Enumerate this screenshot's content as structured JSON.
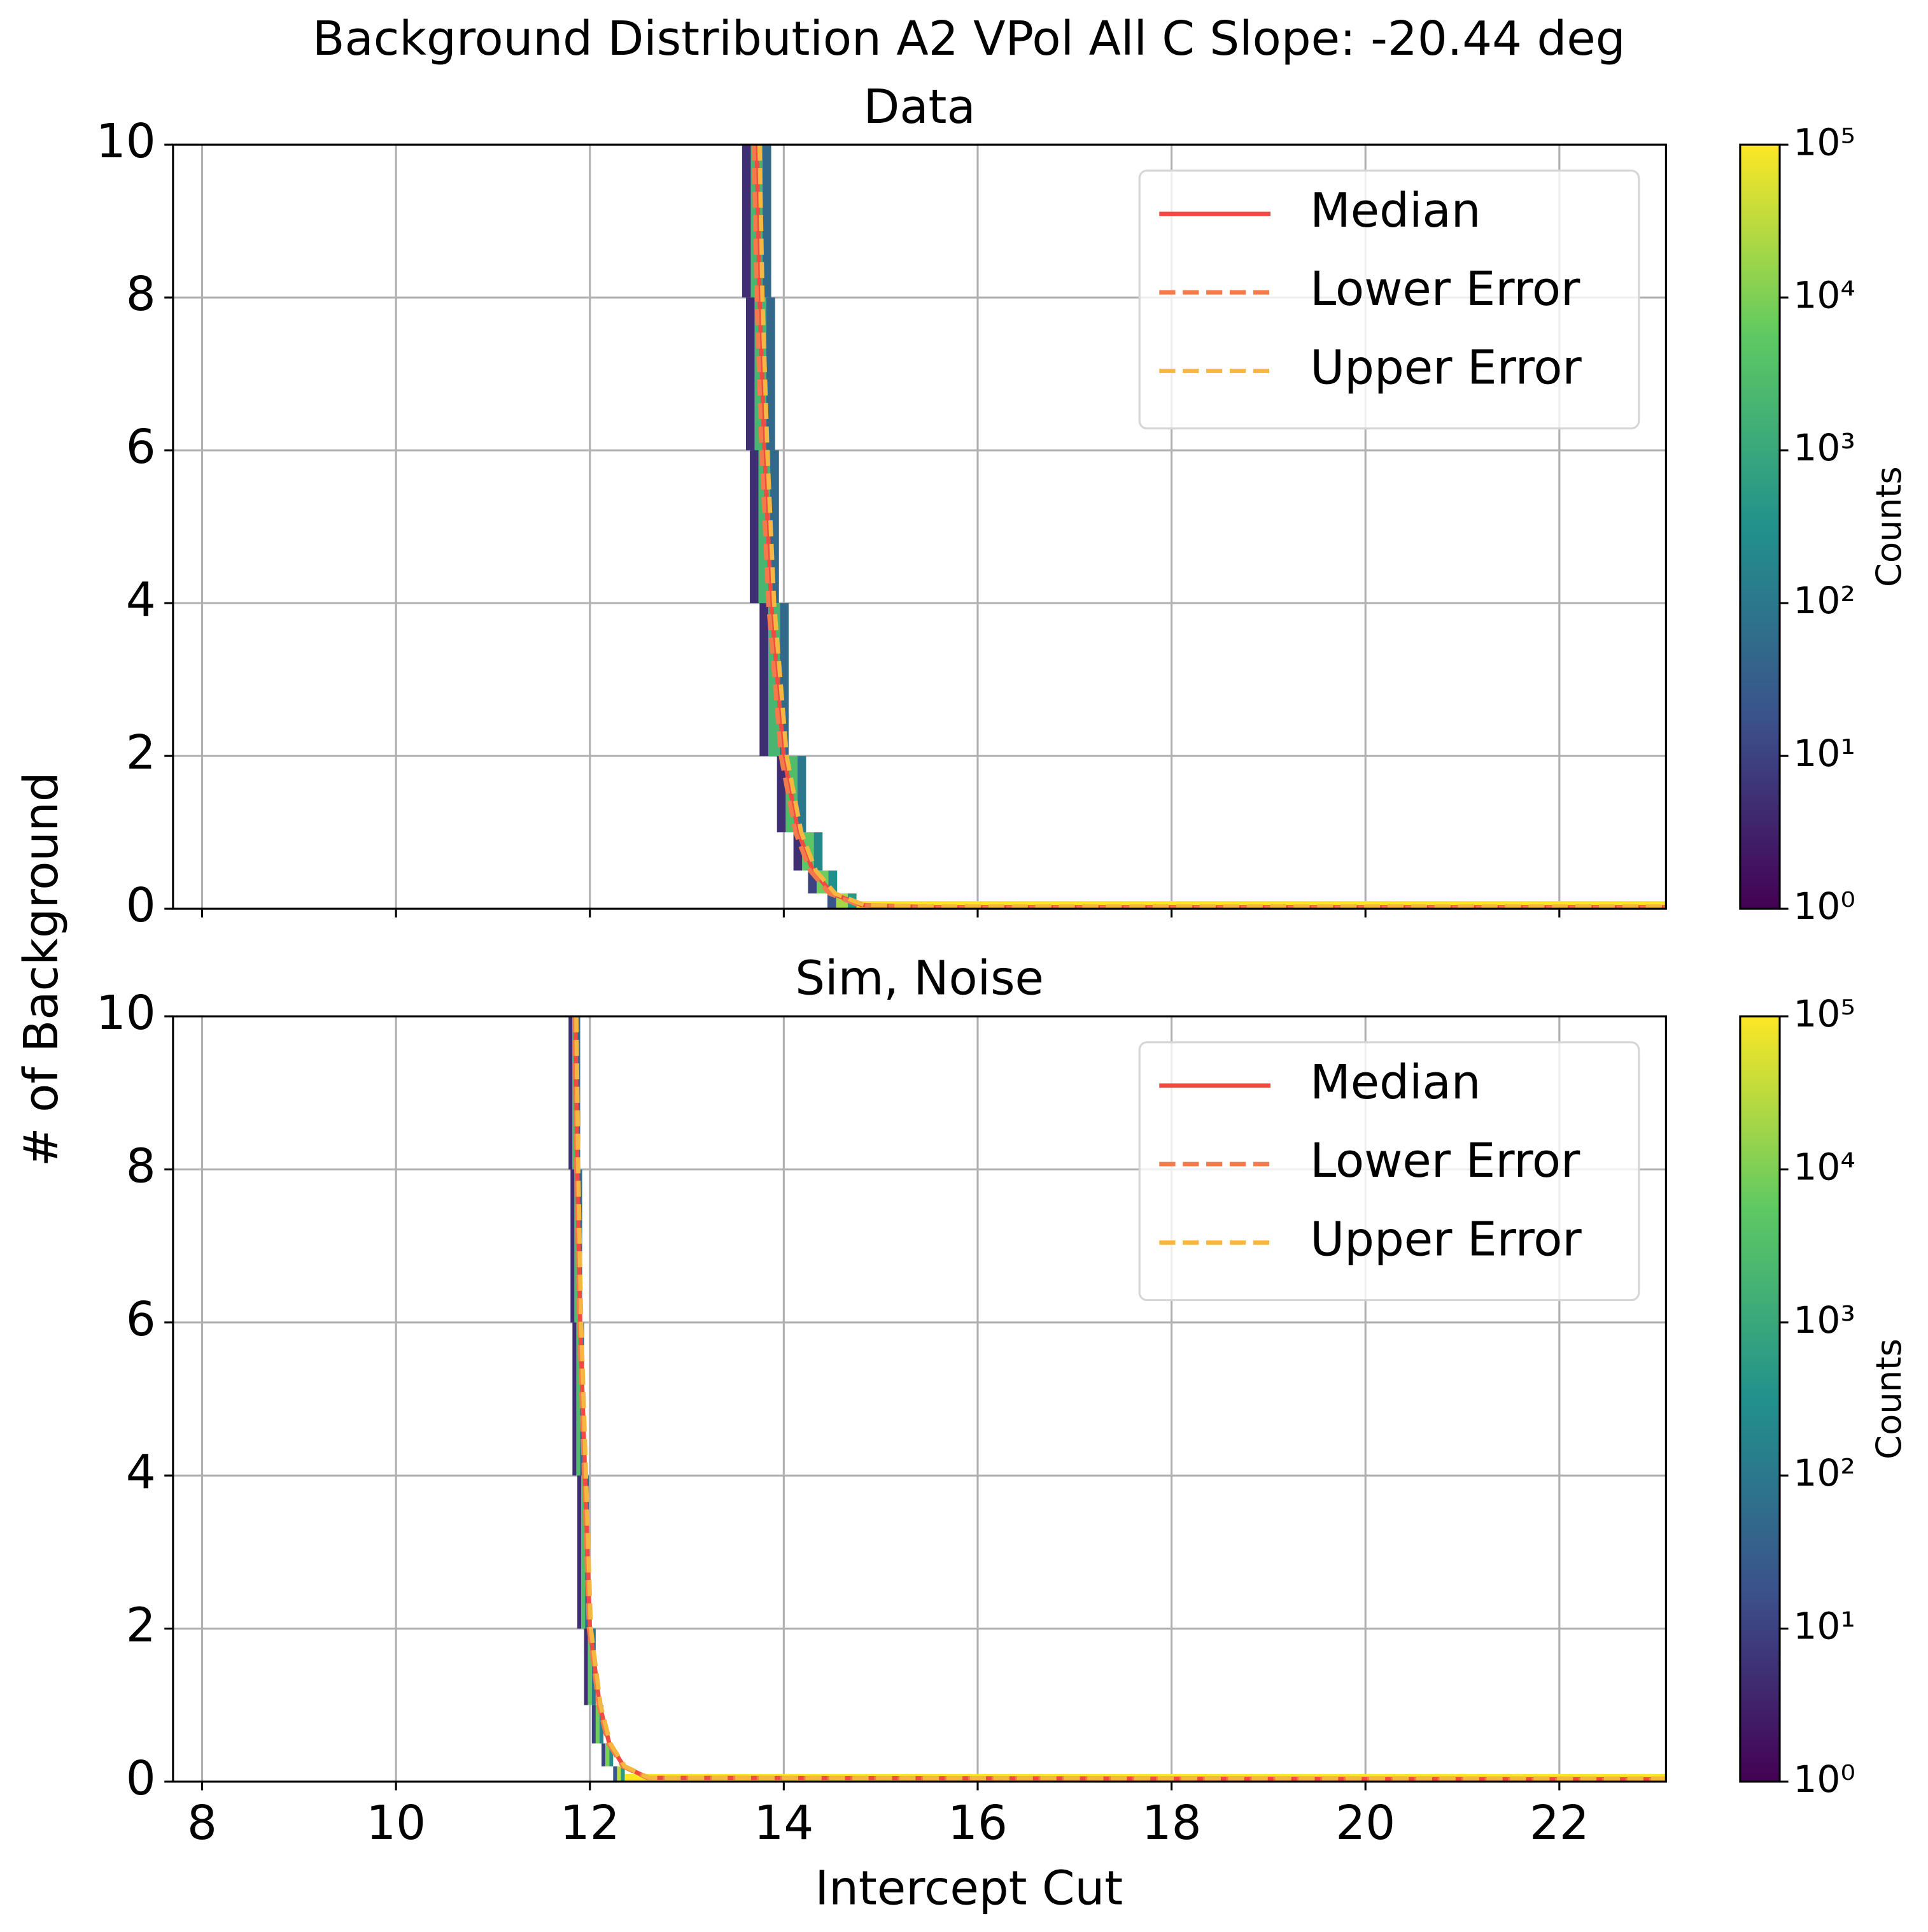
{
  "title": "Background Distribution A2 VPol All C Slope: -20.44 deg",
  "xlabel": "Intercept Cut",
  "ylabel": "# of Background",
  "chart_data": [
    {
      "type": "heatmap",
      "subtitle": "Data",
      "xlim": [
        7.7,
        23.1
      ],
      "xticks": [
        8,
        10,
        12,
        14,
        16,
        18,
        20,
        22
      ],
      "ylim": [
        0,
        10
      ],
      "yticks": [
        0,
        2,
        4,
        6,
        8,
        10
      ],
      "grid": true,
      "legend": "upper right",
      "cells": [
        [
          13.57,
          13.66,
          8,
          10,
          5
        ],
        [
          13.66,
          13.78,
          8,
          10,
          2000
        ],
        [
          13.78,
          13.87,
          8,
          10,
          50
        ],
        [
          13.61,
          13.7,
          6,
          8,
          5
        ],
        [
          13.7,
          13.82,
          6,
          8,
          2000
        ],
        [
          13.82,
          13.91,
          6,
          8,
          50
        ],
        [
          13.65,
          13.74,
          4,
          6,
          5
        ],
        [
          13.74,
          13.86,
          4,
          6,
          2000
        ],
        [
          13.86,
          13.95,
          4,
          6,
          50
        ],
        [
          13.75,
          13.84,
          2,
          4,
          5
        ],
        [
          13.84,
          13.96,
          2,
          4,
          2000
        ],
        [
          13.96,
          14.05,
          2,
          4,
          50
        ],
        [
          13.93,
          14.02,
          1,
          2,
          5
        ],
        [
          14.02,
          14.14,
          1,
          2,
          3000
        ],
        [
          14.14,
          14.23,
          1,
          2,
          100
        ],
        [
          14.1,
          14.19,
          0.5,
          1,
          5
        ],
        [
          14.19,
          14.31,
          0.5,
          1,
          5000
        ],
        [
          14.31,
          14.4,
          0.5,
          1,
          200
        ],
        [
          14.25,
          14.34,
          0.2,
          0.5,
          10
        ],
        [
          14.34,
          14.46,
          0.2,
          0.5,
          8000
        ],
        [
          14.46,
          14.55,
          0.2,
          0.5,
          300
        ],
        [
          14.45,
          14.54,
          0,
          0.2,
          20
        ],
        [
          14.54,
          14.66,
          0,
          0.2,
          20000
        ],
        [
          14.66,
          14.75,
          0,
          0.2,
          500
        ],
        [
          14.75,
          23.1,
          0,
          0.1,
          100000
        ]
      ],
      "series": [
        {
          "name": "Median",
          "color": "#f04a41",
          "dash": false,
          "x": [
            13.72,
            13.75,
            13.8,
            13.87,
            14.0,
            14.15,
            14.3,
            14.5,
            14.8,
            15.5,
            23.1
          ],
          "values": [
            10,
            8,
            6,
            4,
            2,
            1,
            0.5,
            0.2,
            0.05,
            0.02,
            0.02
          ]
        },
        {
          "name": "Lower Error",
          "color": "#f37a4a",
          "dash": true,
          "x": [
            13.69,
            13.72,
            13.77,
            13.84,
            13.97,
            14.12,
            14.27,
            14.47,
            14.77,
            15.5,
            23.1
          ],
          "values": [
            10,
            8,
            6,
            4,
            2,
            1,
            0.5,
            0.2,
            0.05,
            0.01,
            0.01
          ]
        },
        {
          "name": "Upper Error",
          "color": "#f6b741",
          "dash": true,
          "x": [
            13.75,
            13.78,
            13.83,
            13.9,
            14.03,
            14.18,
            14.33,
            14.53,
            14.83,
            15.5,
            23.1
          ],
          "values": [
            10,
            8,
            6,
            4,
            2,
            1,
            0.5,
            0.2,
            0.05,
            0.03,
            0.03
          ]
        }
      ],
      "colorbar": {
        "label": "Counts",
        "log": true,
        "lim": [
          1,
          100000
        ],
        "ticks": [
          {
            "value": 1,
            "label": "10⁰"
          },
          {
            "value": 10,
            "label": "10¹"
          },
          {
            "value": 100,
            "label": "10²"
          },
          {
            "value": 1000,
            "label": "10³"
          },
          {
            "value": 10000,
            "label": "10⁴"
          },
          {
            "value": 100000,
            "label": "10⁵"
          }
        ]
      }
    },
    {
      "type": "heatmap",
      "subtitle": "Sim, Noise",
      "xlim": [
        7.7,
        23.1
      ],
      "xticks": [
        8,
        10,
        12,
        14,
        16,
        18,
        20,
        22
      ],
      "ylim": [
        0,
        10
      ],
      "yticks": [
        0,
        2,
        4,
        6,
        8,
        10
      ],
      "grid": true,
      "legend": "upper right",
      "cells": [
        [
          11.78,
          11.82,
          8,
          10,
          5
        ],
        [
          11.82,
          11.86,
          8,
          10,
          3000
        ],
        [
          11.86,
          11.9,
          8,
          10,
          50
        ],
        [
          11.8,
          11.84,
          6,
          8,
          5
        ],
        [
          11.84,
          11.88,
          6,
          8,
          3000
        ],
        [
          11.88,
          11.92,
          6,
          8,
          50
        ],
        [
          11.82,
          11.86,
          4,
          6,
          5
        ],
        [
          11.86,
          11.9,
          4,
          6,
          3000
        ],
        [
          11.9,
          11.94,
          4,
          6,
          50
        ],
        [
          11.87,
          11.91,
          2,
          4,
          5
        ],
        [
          11.91,
          11.95,
          2,
          4,
          3000
        ],
        [
          11.95,
          11.99,
          2,
          4,
          50
        ],
        [
          11.94,
          11.98,
          1,
          2,
          5
        ],
        [
          11.98,
          12.02,
          1,
          2,
          5000
        ],
        [
          12.02,
          12.06,
          1,
          2,
          100
        ],
        [
          12.02,
          12.06,
          0.5,
          1,
          10
        ],
        [
          12.06,
          12.1,
          0.5,
          1,
          8000
        ],
        [
          12.1,
          12.14,
          0.5,
          1,
          200
        ],
        [
          12.12,
          12.16,
          0.2,
          0.5,
          10
        ],
        [
          12.16,
          12.2,
          0.2,
          0.5,
          10000
        ],
        [
          12.2,
          12.24,
          0.2,
          0.5,
          300
        ],
        [
          12.24,
          12.28,
          0,
          0.2,
          20
        ],
        [
          12.28,
          12.32,
          0,
          0.2,
          30000
        ],
        [
          12.32,
          12.36,
          0,
          0.2,
          500
        ],
        [
          12.36,
          23.1,
          0,
          0.1,
          100000
        ]
      ],
      "series": [
        {
          "name": "Median",
          "color": "#f04a41",
          "dash": false,
          "x": [
            11.85,
            11.87,
            11.9,
            11.95,
            12.0,
            12.1,
            12.2,
            12.35,
            12.6,
            23.1
          ],
          "values": [
            10,
            8,
            6,
            4,
            2,
            1,
            0.5,
            0.2,
            0.05,
            0.03
          ]
        },
        {
          "name": "Lower Error",
          "color": "#f37a4a",
          "dash": true,
          "x": [
            11.84,
            11.86,
            11.89,
            11.94,
            11.99,
            12.09,
            12.19,
            12.34,
            12.59,
            23.1
          ],
          "values": [
            10,
            8,
            6,
            4,
            2,
            1,
            0.5,
            0.2,
            0.05,
            0.02
          ]
        },
        {
          "name": "Upper Error",
          "color": "#f6b741",
          "dash": true,
          "x": [
            11.86,
            11.88,
            11.91,
            11.96,
            12.01,
            12.11,
            12.21,
            12.36,
            12.61,
            23.1
          ],
          "values": [
            10,
            8,
            6,
            4,
            2,
            1,
            0.5,
            0.2,
            0.05,
            0.04
          ]
        }
      ],
      "colorbar": {
        "label": "Counts",
        "log": true,
        "lim": [
          1,
          100000
        ],
        "ticks": [
          {
            "value": 1,
            "label": "10⁰"
          },
          {
            "value": 10,
            "label": "10¹"
          },
          {
            "value": 100,
            "label": "10²"
          },
          {
            "value": 1000,
            "label": "10³"
          },
          {
            "value": 10000,
            "label": "10⁴"
          },
          {
            "value": 100000,
            "label": "10⁵"
          }
        ]
      }
    }
  ]
}
